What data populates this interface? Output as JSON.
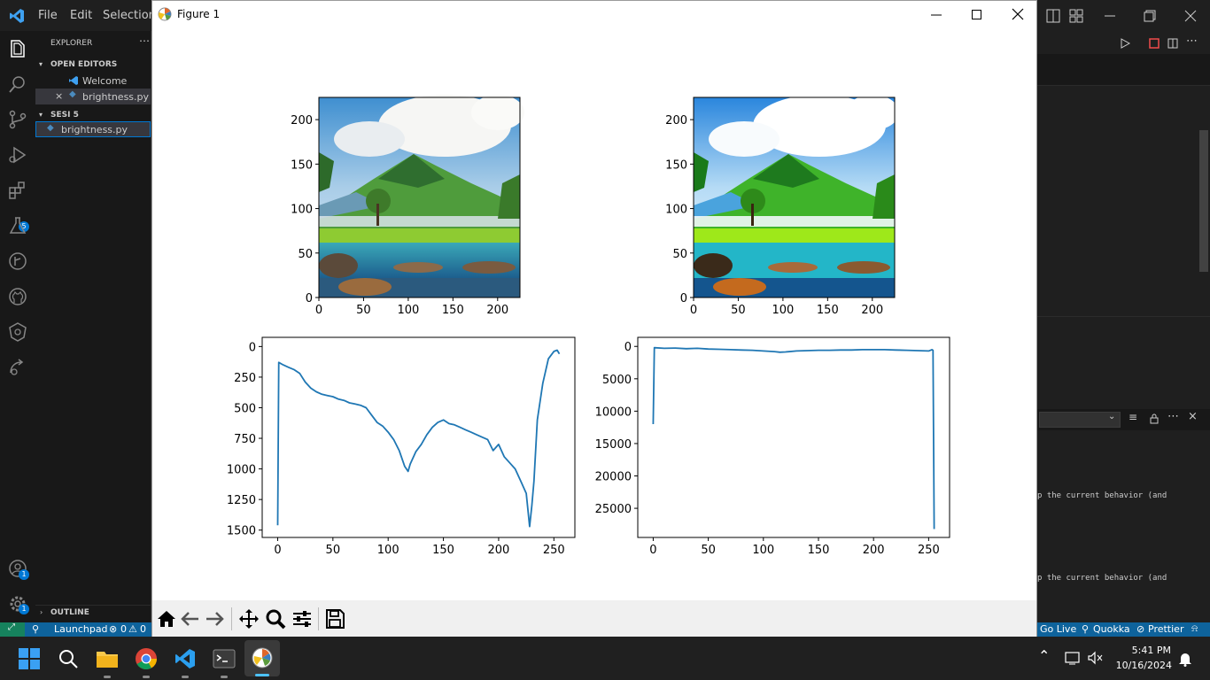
{
  "vscode": {
    "menu": [
      "File",
      "Edit",
      "Selection"
    ],
    "explorer_title": "EXPLORER",
    "open_editors_label": "OPEN EDITORS",
    "open_editors": [
      "Welcome",
      "brightness.py"
    ],
    "folder_label": "SESI 5",
    "folder_files": [
      "brightness.py"
    ],
    "outline_label": "OUTLINE",
    "extensions_badge": "5",
    "accounts_badge": "1",
    "settings_badge": "1",
    "terminal_line1": "p the current behavior (and",
    "terminal_line2": "p the current behavior (and",
    "status": {
      "launchpad": "Launchpad",
      "problems": "0",
      "warnings": "0",
      "golive": "Go Live",
      "quokka": "Quokka",
      "prettier": "Prettier"
    }
  },
  "figure": {
    "title": "Figure 1",
    "toolbar": [
      "home",
      "back",
      "forward",
      "pan",
      "zoom",
      "configure",
      "save"
    ]
  },
  "chart_data": [
    {
      "type": "image",
      "description_none": "",
      "xlim": [
        0,
        225
      ],
      "ylim": [
        225,
        0
      ],
      "xticks": [
        0,
        50,
        100,
        150,
        200
      ],
      "yticks": [
        0,
        50,
        100,
        150,
        200
      ]
    },
    {
      "type": "image",
      "xlim": [
        0,
        225
      ],
      "ylim": [
        225,
        0
      ],
      "xticks": [
        0,
        50,
        100,
        150,
        200
      ],
      "yticks": [
        0,
        50,
        100,
        150,
        200
      ]
    },
    {
      "type": "line",
      "xlim": [
        -14,
        269
      ],
      "ylim": [
        -75,
        1560
      ],
      "xticks": [
        0,
        50,
        100,
        150,
        200,
        250
      ],
      "yticks": [
        0,
        250,
        500,
        750,
        1000,
        1250,
        1500
      ],
      "color": "#1f77b4",
      "x": [
        0,
        1,
        5,
        10,
        15,
        20,
        25,
        30,
        35,
        40,
        45,
        50,
        55,
        60,
        65,
        70,
        75,
        80,
        85,
        90,
        95,
        100,
        105,
        110,
        115,
        118,
        120,
        125,
        130,
        135,
        140,
        145,
        150,
        155,
        160,
        165,
        170,
        175,
        180,
        185,
        190,
        195,
        200,
        205,
        210,
        215,
        220,
        225,
        228,
        230,
        232,
        235,
        240,
        245,
        250,
        253,
        255
      ],
      "y": [
        1460,
        130,
        150,
        170,
        190,
        220,
        290,
        340,
        370,
        390,
        400,
        410,
        430,
        440,
        460,
        470,
        480,
        500,
        560,
        620,
        650,
        700,
        760,
        850,
        980,
        1020,
        960,
        860,
        800,
        720,
        660,
        620,
        600,
        630,
        640,
        660,
        680,
        700,
        720,
        740,
        760,
        850,
        800,
        900,
        950,
        1000,
        1100,
        1200,
        1470,
        1300,
        1100,
        600,
        300,
        100,
        40,
        30,
        60
      ]
    },
    {
      "type": "line",
      "xlim": [
        -14,
        269
      ],
      "ylim": [
        -1400,
        29500
      ],
      "xticks": [
        0,
        50,
        100,
        150,
        200,
        250
      ],
      "yticks": [
        0,
        5000,
        10000,
        15000,
        20000,
        25000
      ],
      "color": "#1f77b4",
      "x": [
        0,
        1,
        10,
        20,
        30,
        40,
        50,
        60,
        70,
        80,
        90,
        100,
        110,
        115,
        120,
        130,
        140,
        150,
        160,
        170,
        180,
        190,
        200,
        210,
        220,
        230,
        240,
        250,
        253,
        254,
        255
      ],
      "y": [
        12000,
        200,
        300,
        250,
        350,
        300,
        400,
        450,
        500,
        550,
        600,
        700,
        800,
        900,
        850,
        700,
        650,
        600,
        600,
        550,
        550,
        500,
        500,
        500,
        550,
        600,
        650,
        700,
        500,
        600,
        28200
      ]
    }
  ],
  "taskbar": {
    "time": "5:41 PM",
    "date": "10/16/2024"
  }
}
